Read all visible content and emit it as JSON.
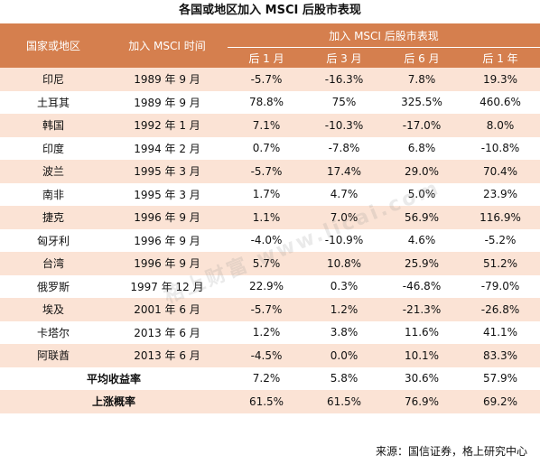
{
  "title": "各国或地区加入 MSCI 后股市表现",
  "headers": {
    "country": "国家或地区",
    "join_time": "加入 MSCI 时间",
    "performance": "加入 MSCI 后股市表现",
    "periods": [
      "后 1 月",
      "后 3 月",
      "后 6 月",
      "后 1 年"
    ]
  },
  "rows": [
    {
      "country": "印尼",
      "date": "1989 年 9 月",
      "m1": "-5.7%",
      "m3": "-16.3%",
      "m6": "7.8%",
      "y1": "19.3%"
    },
    {
      "country": "土耳其",
      "date": "1989 年 9 月",
      "m1": "78.8%",
      "m3": "75%",
      "m6": "325.5%",
      "y1": "460.6%"
    },
    {
      "country": "韩国",
      "date": "1992 年 1 月",
      "m1": "7.1%",
      "m3": "-10.3%",
      "m6": "-17.0%",
      "y1": "8.0%"
    },
    {
      "country": "印度",
      "date": "1994 年 2 月",
      "m1": "0.7%",
      "m3": "-7.8%",
      "m6": "6.8%",
      "y1": "-10.8%"
    },
    {
      "country": "波兰",
      "date": "1995 年 3 月",
      "m1": "-5.7%",
      "m3": "17.4%",
      "m6": "29.0%",
      "y1": "70.4%"
    },
    {
      "country": "南非",
      "date": "1995 年 3 月",
      "m1": "1.7%",
      "m3": "4.7%",
      "m6": "5.0%",
      "y1": "23.9%"
    },
    {
      "country": "捷克",
      "date": "1996 年 9 月",
      "m1": "1.1%",
      "m3": "7.0%",
      "m6": "56.9%",
      "y1": "116.9%"
    },
    {
      "country": "匈牙利",
      "date": "1996 年 9 月",
      "m1": "-4.0%",
      "m3": "-10.9%",
      "m6": "4.6%",
      "y1": "-5.2%"
    },
    {
      "country": "台湾",
      "date": "1996 年 9 月",
      "m1": "5.7%",
      "m3": "10.8%",
      "m6": "25.9%",
      "y1": "51.2%"
    },
    {
      "country": "俄罗斯",
      "date": "1997 年 12 月",
      "m1": "22.9%",
      "m3": "0.3%",
      "m6": "-46.8%",
      "y1": "-79.0%"
    },
    {
      "country": "埃及",
      "date": "2001 年 6 月",
      "m1": "-5.7%",
      "m3": "1.2%",
      "m6": "-21.3%",
      "y1": "-26.8%"
    },
    {
      "country": "卡塔尔",
      "date": "2013 年 6 月",
      "m1": "1.2%",
      "m3": "3.8%",
      "m6": "11.6%",
      "y1": "41.1%"
    },
    {
      "country": "阿联酋",
      "date": "2013 年 6 月",
      "m1": "-4.5%",
      "m3": "0.0%",
      "m6": "10.1%",
      "y1": "83.3%"
    }
  ],
  "summary": [
    {
      "label": "平均收益率",
      "m1": "7.2%",
      "m3": "5.8%",
      "m6": "30.6%",
      "y1": "57.9%"
    },
    {
      "label": "上涨概率",
      "m1": "61.5%",
      "m3": "61.5%",
      "m6": "76.9%",
      "y1": "69.2%"
    }
  ],
  "source": "来源：国信证券，格上研究中心",
  "watermark": "格上财富 www.licai.com",
  "colors": {
    "header_bg": "#d57f4e",
    "stripe_bg": "#fbe3d5"
  }
}
